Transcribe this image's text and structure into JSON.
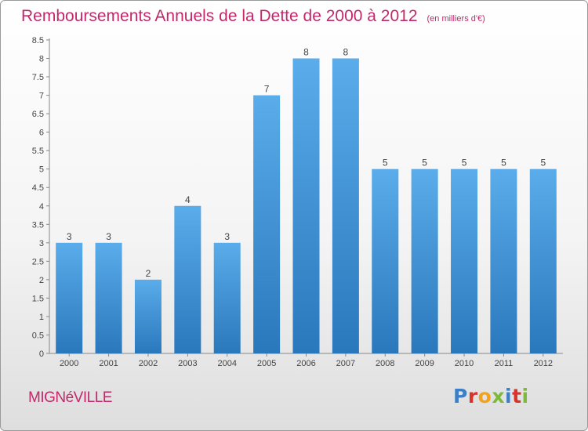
{
  "header": {
    "title": "Remboursements Annuels de la Dette de 2000 à 2012",
    "subtitle": "(en milliers d'€)"
  },
  "footer": {
    "city": "MIGNéVILLE",
    "logo": [
      "P",
      "r",
      "o",
      "x",
      "i",
      "t",
      "i"
    ]
  },
  "colors": {
    "title": "#c3286b",
    "bar_top": "#5aacea",
    "bar_bottom": "#2a78bc"
  },
  "chart_data": {
    "type": "bar",
    "title": "Remboursements Annuels de la Dette de 2000 à 2012",
    "subtitle": "(en milliers d'€)",
    "categories": [
      "2000",
      "2001",
      "2002",
      "2003",
      "2004",
      "2005",
      "2006",
      "2007",
      "2008",
      "2009",
      "2010",
      "2011",
      "2012"
    ],
    "values": [
      3,
      3,
      2,
      4,
      3,
      7,
      8,
      8,
      5,
      5,
      5,
      5,
      5
    ],
    "data_labels": [
      "3",
      "3",
      "2",
      "4",
      "3",
      "7",
      "8",
      "8",
      "5",
      "5",
      "5",
      "5",
      "5"
    ],
    "yticks": [
      "0",
      "0.5",
      "1",
      "1.5",
      "2",
      "2.5",
      "3",
      "3.5",
      "4",
      "4.5",
      "5",
      "5.5",
      "6",
      "6.5",
      "7",
      "7.5",
      "8",
      "8.5"
    ],
    "ylim": [
      0,
      8.5
    ],
    "xlabel": "",
    "ylabel": "",
    "grid": false,
    "legend": "none"
  }
}
